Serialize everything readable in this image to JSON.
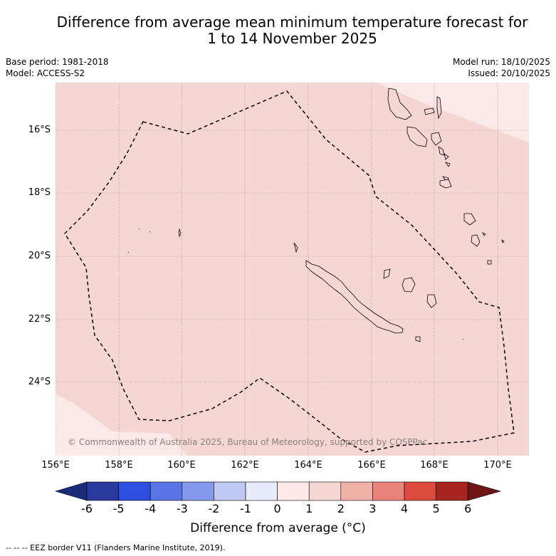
{
  "title_line1": "Difference from average mean minimum temperature forecast for",
  "title_line2": "1 to 14 November 2025",
  "base_period": "Base period: 1981-2018",
  "model": "Model: ACCESS-S2",
  "model_run": "Model run: 18/10/2025",
  "issued": "Issued: 20/10/2025",
  "lat_labels": [
    "16°S",
    "18°S",
    "20°S",
    "22°S",
    "24°S"
  ],
  "lon_labels": [
    "156°E",
    "158°E",
    "160°E",
    "162°E",
    "164°E",
    "166°E",
    "168°E",
    "170°E"
  ],
  "copyright": "© Commonwealth of Australia 2025, Bureau of Meteorology, supported by COSPPac",
  "colorbar": {
    "ticks": [
      "-6",
      "-5",
      "-4",
      "-3",
      "-2",
      "-1",
      "0",
      "1",
      "2",
      "3",
      "4",
      "5",
      "6"
    ],
    "colors": [
      "#2a3a9c",
      "#2e4ee0",
      "#5b74e6",
      "#8599ec",
      "#c0c8f4",
      "#e8ebfa",
      "#fde9e7",
      "#f5d6d3",
      "#efb0a8",
      "#e7837a",
      "#dc4a3d",
      "#a8241f"
    ],
    "label": "Difference from average (°C)"
  },
  "map_colors": {
    "base": "#f5d6d3",
    "warm_light": "#fbe9e7",
    "cool_light": "#fde9e7"
  },
  "footer": "-- -- -- EEZ border V11 (Flanders Marine Institute, 2019)."
}
